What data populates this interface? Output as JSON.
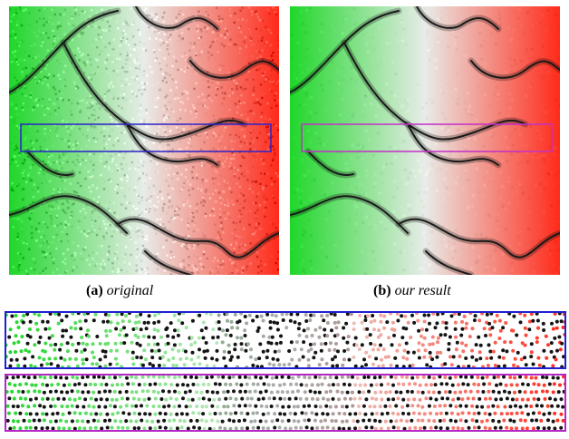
{
  "panels": [
    {
      "label": "(a)",
      "caption": "original",
      "box_color": "#2b22c8"
    },
    {
      "label": "(b)",
      "caption": "our result",
      "box_color": "#c42fc8"
    }
  ],
  "colors": {
    "green": "#1fd72a",
    "white": "#e8ece8",
    "red": "#ff2a1a",
    "crack": "#1a1a1a"
  },
  "strips": [
    {
      "border_color": "#1f1fd0"
    },
    {
      "border_color": "#b526c6"
    }
  ]
}
